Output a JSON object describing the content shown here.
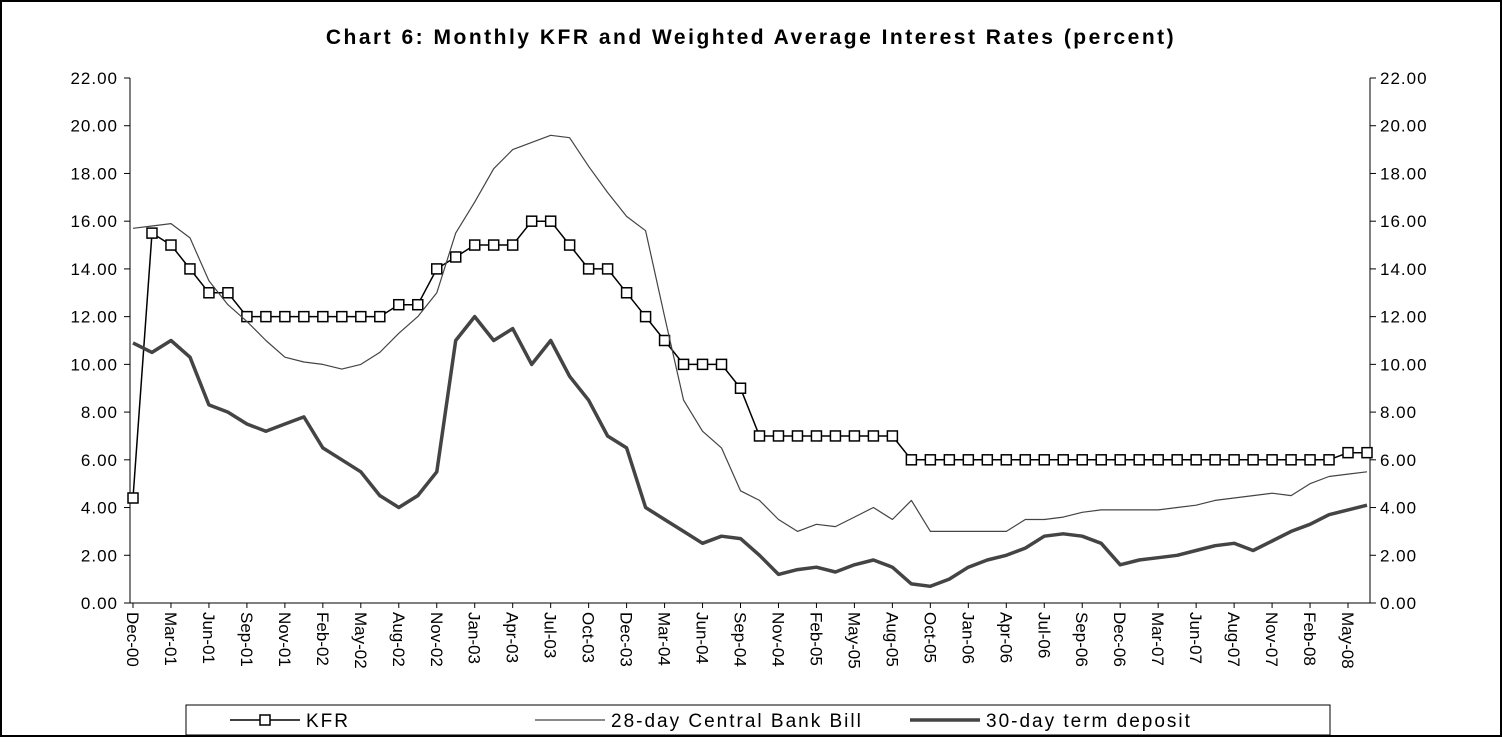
{
  "chart_data": {
    "type": "line",
    "title": "Chart 6: Monthly KFR and Weighted Average Interest Rates (percent)",
    "categories": [
      "Dec-00",
      null,
      "Mar-01",
      null,
      "Jun-01",
      null,
      "Sep-01",
      null,
      "Nov-01",
      null,
      "Feb-02",
      null,
      "May-02",
      null,
      "Aug-02",
      null,
      "Nov-02",
      null,
      "Jan-03",
      null,
      "Apr-03",
      null,
      "Jul-03",
      null,
      "Oct-03",
      null,
      "Dec-03",
      null,
      "Mar-04",
      null,
      "Jun-04",
      null,
      "Sep-04",
      null,
      "Nov-04",
      null,
      "Feb-05",
      null,
      "May-05",
      null,
      "Aug-05",
      null,
      "Oct-05",
      null,
      "Jan-06",
      null,
      "Apr-06",
      null,
      "Jul-06",
      null,
      "Sep-06",
      null,
      "Dec-06",
      null,
      "Mar-07",
      null,
      "Jun-07",
      null,
      "Aug-07",
      null,
      "Nov-07",
      null,
      "Feb-08",
      null,
      "May-08",
      null
    ],
    "series": [
      {
        "name": "KFR",
        "color": "#000000",
        "marker": "square",
        "values": [
          4.4,
          15.5,
          15.0,
          14.0,
          13.0,
          13.0,
          12.0,
          12.0,
          12.0,
          12.0,
          12.0,
          12.0,
          12.0,
          12.0,
          12.5,
          12.5,
          14.0,
          14.5,
          15.0,
          15.0,
          15.0,
          16.0,
          16.0,
          15.0,
          14.0,
          14.0,
          13.0,
          12.0,
          11.0,
          10.0,
          10.0,
          10.0,
          9.0,
          7.0,
          7.0,
          7.0,
          7.0,
          7.0,
          7.0,
          7.0,
          7.0,
          6.0,
          6.0,
          6.0,
          6.0,
          6.0,
          6.0,
          6.0,
          6.0,
          6.0,
          6.0,
          6.0,
          6.0,
          6.0,
          6.0,
          6.0,
          6.0,
          6.0,
          6.0,
          6.0,
          6.0,
          6.0,
          6.0,
          6.0,
          6.3,
          6.3
        ]
      },
      {
        "name": "28-day Central Bank Bill",
        "color": "#444444",
        "width": 1.2,
        "values": [
          15.7,
          15.8,
          15.9,
          15.3,
          13.5,
          12.5,
          11.8,
          11.0,
          10.3,
          10.1,
          10.0,
          9.8,
          10.0,
          10.5,
          11.3,
          12.0,
          13.0,
          15.5,
          16.8,
          18.2,
          19.0,
          19.3,
          19.6,
          19.5,
          18.3,
          17.2,
          16.2,
          15.6,
          12.0,
          8.5,
          7.2,
          6.5,
          4.7,
          4.3,
          3.5,
          3.0,
          3.3,
          3.2,
          3.6,
          4.0,
          3.5,
          4.3,
          3.0,
          3.0,
          3.0,
          3.0,
          3.0,
          3.5,
          3.5,
          3.6,
          3.8,
          3.9,
          3.9,
          3.9,
          3.9,
          4.0,
          4.1,
          4.3,
          4.4,
          4.5,
          4.6,
          4.5,
          5.0,
          5.3,
          5.4,
          5.5
        ]
      },
      {
        "name": "30-day term deposit",
        "color": "#444444",
        "width": 3.5,
        "values": [
          10.9,
          10.5,
          11.0,
          10.3,
          8.3,
          8.0,
          7.5,
          7.2,
          7.5,
          7.8,
          6.5,
          6.0,
          5.5,
          4.5,
          4.0,
          4.5,
          5.5,
          11.0,
          12.0,
          11.0,
          11.5,
          10.0,
          11.0,
          9.5,
          8.5,
          7.0,
          6.5,
          4.0,
          3.5,
          3.0,
          2.5,
          2.8,
          2.7,
          2.0,
          1.2,
          1.4,
          1.5,
          1.3,
          1.6,
          1.8,
          1.5,
          0.8,
          0.7,
          1.0,
          1.5,
          1.8,
          2.0,
          2.3,
          2.8,
          2.9,
          2.8,
          2.5,
          1.6,
          1.8,
          1.9,
          2.0,
          2.2,
          2.4,
          2.5,
          2.2,
          2.6,
          3.0,
          3.3,
          3.7,
          3.9,
          4.1
        ]
      }
    ],
    "ylim": [
      0,
      22
    ],
    "yticks": [
      {
        "value": 0,
        "label": "0.00"
      },
      {
        "value": 2,
        "label": "2.00"
      },
      {
        "value": 4,
        "label": "4.00"
      },
      {
        "value": 6,
        "label": "6.00"
      },
      {
        "value": 8,
        "label": "8.00"
      },
      {
        "value": 10,
        "label": "10.00"
      },
      {
        "value": 12,
        "label": "12.00"
      },
      {
        "value": 14,
        "label": "14.00"
      },
      {
        "value": 16,
        "label": "16.00"
      },
      {
        "value": 18,
        "label": "18.00"
      },
      {
        "value": 20,
        "label": "20.00"
      },
      {
        "value": 22,
        "label": "22.00"
      }
    ],
    "y2lim": [
      0,
      22
    ],
    "y2ticks": [
      {
        "value": 0,
        "label": "0.00"
      },
      {
        "value": 2,
        "label": "2.00"
      },
      {
        "value": 4,
        "label": "4.00"
      },
      {
        "value": 6,
        "label": "6.00"
      },
      {
        "value": 8,
        "label": "8.00"
      },
      {
        "value": 10,
        "label": "10.00"
      },
      {
        "value": 12,
        "label": "12.00"
      },
      {
        "value": 14,
        "label": "14.00"
      },
      {
        "value": 16,
        "label": "16.00"
      },
      {
        "value": 18,
        "label": "18.00"
      },
      {
        "value": 20,
        "label": "20.00"
      },
      {
        "value": 22,
        "label": "22.00"
      }
    ],
    "grid": false,
    "legend": "bottom"
  }
}
